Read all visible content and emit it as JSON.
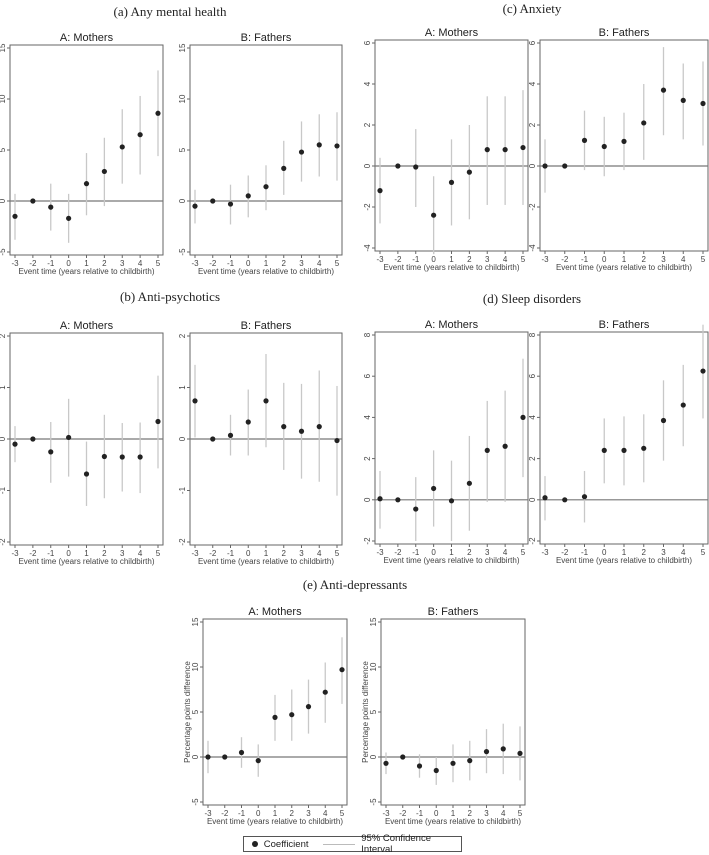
{
  "chart_data": [
    {
      "type": "scatter",
      "title": "(a) Any mental health",
      "panels": [
        {
          "subtitle": "A: Mothers",
          "x": [
            -3,
            -2,
            -1,
            0,
            1,
            2,
            3,
            4,
            5
          ],
          "coef": [
            -1.5,
            0,
            -0.6,
            -1.7,
            1.7,
            2.9,
            5.3,
            6.5,
            8.6
          ],
          "ci_low": [
            -3.8,
            0,
            -2.9,
            -4.1,
            -1.4,
            -0.5,
            1.7,
            2.6,
            4.4
          ],
          "ci_high": [
            0.7,
            0,
            1.7,
            0.7,
            4.7,
            6.2,
            9.0,
            10.3,
            12.8
          ]
        },
        {
          "subtitle": "B: Fathers",
          "x": [
            -3,
            -2,
            -1,
            0,
            1,
            2,
            3,
            4,
            5
          ],
          "coef": [
            -0.5,
            0,
            -0.3,
            0.5,
            1.4,
            3.2,
            4.8,
            5.5,
            5.4
          ],
          "ci_low": [
            -2.2,
            0,
            -2.3,
            -1.6,
            -0.9,
            0.6,
            1.9,
            2.4,
            2.0
          ],
          "ci_high": [
            1.1,
            0,
            1.6,
            2.5,
            3.5,
            5.9,
            7.8,
            8.5,
            8.7
          ]
        }
      ],
      "yticks": [
        "-5",
        "0",
        "5",
        "10",
        "15"
      ],
      "ylim": [
        -5,
        15
      ],
      "xticks": [
        "-3",
        "-2",
        "-1",
        "0",
        "1",
        "2",
        "3",
        "4",
        "5"
      ],
      "xlabel": "Event time (years relative to childbirth)",
      "ylabel": ""
    },
    {
      "type": "scatter",
      "title": "(c) Anxiety",
      "panels": [
        {
          "subtitle": "A: Mothers",
          "x": [
            -3,
            -2,
            -1,
            0,
            1,
            2,
            3,
            4,
            5
          ],
          "coef": [
            -1.2,
            0,
            -0.05,
            -2.4,
            -0.8,
            -0.3,
            0.8,
            0.8,
            0.9
          ],
          "ci_low": [
            -2.8,
            0,
            -2.0,
            -4.3,
            -2.9,
            -2.6,
            -1.9,
            -1.9,
            -1.9
          ],
          "ci_high": [
            0.4,
            0,
            1.8,
            -0.5,
            1.3,
            2.0,
            3.4,
            3.4,
            3.7
          ]
        },
        {
          "subtitle": "B: Fathers",
          "x": [
            -3,
            -2,
            -1,
            0,
            1,
            2,
            3,
            4,
            5
          ],
          "coef": [
            0.0,
            0,
            1.25,
            0.95,
            1.2,
            2.1,
            3.7,
            3.2,
            3.05
          ],
          "ci_low": [
            -1.3,
            0,
            -0.2,
            -0.5,
            -0.2,
            0.3,
            1.5,
            1.3,
            1.0
          ],
          "ci_high": [
            1.3,
            0,
            2.7,
            2.4,
            2.6,
            4.0,
            5.8,
            5.0,
            5.1
          ]
        }
      ],
      "yticks": [
        "-4",
        "-2",
        "0",
        "2",
        "4",
        "6"
      ],
      "ylim": [
        -4,
        6
      ],
      "xticks": [
        "-3",
        "-2",
        "-1",
        "0",
        "1",
        "2",
        "3",
        "4",
        "5"
      ],
      "xlabel": "Event time (years relative to childbirth)",
      "ylabel": ""
    },
    {
      "type": "scatter",
      "title": "(b) Anti-psychotics",
      "panels": [
        {
          "subtitle": "A: Mothers",
          "x": [
            -3,
            -2,
            -1,
            0,
            1,
            2,
            3,
            4,
            5
          ],
          "coef": [
            -0.1,
            0,
            -0.25,
            0.03,
            -0.68,
            -0.34,
            -0.35,
            -0.35,
            0.34
          ],
          "ci_low": [
            -0.45,
            0,
            -0.85,
            -0.73,
            -1.3,
            -1.15,
            -1.02,
            -1.05,
            -0.57
          ],
          "ci_high": [
            0.25,
            0,
            0.33,
            0.78,
            -0.05,
            0.47,
            0.31,
            0.32,
            1.23
          ]
        },
        {
          "subtitle": "B: Fathers",
          "x": [
            -3,
            -2,
            -1,
            0,
            1,
            2,
            3,
            4,
            5
          ],
          "coef": [
            0.74,
            0,
            0.07,
            0.33,
            0.74,
            0.24,
            0.15,
            0.24,
            -0.03
          ],
          "ci_low": [
            0.03,
            0,
            -0.32,
            -0.32,
            -0.16,
            -0.6,
            -0.77,
            -0.83,
            -1.1
          ],
          "ci_high": [
            1.44,
            0,
            0.47,
            0.96,
            1.65,
            1.09,
            1.07,
            1.33,
            1.03
          ]
        }
      ],
      "yticks": [
        "-2",
        "-1",
        "0",
        "1",
        "2"
      ],
      "ylim": [
        -2,
        2
      ],
      "xticks": [
        "-3",
        "-2",
        "-1",
        "0",
        "1",
        "2",
        "3",
        "4",
        "5"
      ],
      "xlabel": "Event time (years relative to childbirth)",
      "ylabel": ""
    },
    {
      "type": "scatter",
      "title": "(d) Sleep disorders",
      "panels": [
        {
          "subtitle": "A: Mothers",
          "x": [
            -3,
            -2,
            -1,
            0,
            1,
            2,
            3,
            4,
            5
          ],
          "coef": [
            0.05,
            0,
            -0.45,
            0.55,
            -0.05,
            0.8,
            2.4,
            2.6,
            4.0
          ],
          "ci_low": [
            -1.4,
            0,
            -2.0,
            -1.3,
            -2.0,
            -1.5,
            -0.1,
            -0.1,
            1.1
          ],
          "ci_high": [
            1.4,
            0,
            1.1,
            2.4,
            1.9,
            3.1,
            4.8,
            5.3,
            6.85
          ]
        },
        {
          "subtitle": "B: Fathers",
          "x": [
            -3,
            -2,
            -1,
            0,
            1,
            2,
            3,
            4,
            5
          ],
          "coef": [
            0.1,
            0,
            0.15,
            2.4,
            2.4,
            2.5,
            3.85,
            4.6,
            6.25
          ],
          "ci_low": [
            -1.0,
            0,
            -1.1,
            0.8,
            0.7,
            0.85,
            1.9,
            2.6,
            3.95
          ],
          "ci_high": [
            1.15,
            0,
            1.4,
            3.95,
            4.05,
            4.15,
            5.8,
            6.55,
            8.5
          ]
        }
      ],
      "yticks": [
        "-2",
        "0",
        "2",
        "4",
        "6",
        "8"
      ],
      "ylim": [
        -2,
        8
      ],
      "xticks": [
        "-3",
        "-2",
        "-1",
        "0",
        "1",
        "2",
        "3",
        "4",
        "5"
      ],
      "xlabel": "Event time (years relative to childbirth)",
      "ylabel": ""
    },
    {
      "type": "scatter",
      "title": "(e) Anti-depressants",
      "panels": [
        {
          "subtitle": "A: Mothers",
          "x": [
            -3,
            -2,
            -1,
            0,
            1,
            2,
            3,
            4,
            5
          ],
          "coef": [
            0,
            0,
            0.5,
            -0.4,
            4.4,
            4.7,
            5.6,
            7.2,
            9.7
          ],
          "ci_low": [
            -1.8,
            0,
            -1.2,
            -2.2,
            1.8,
            1.8,
            2.6,
            3.8,
            5.9
          ],
          "ci_high": [
            1.8,
            0,
            2.2,
            1.4,
            6.9,
            7.5,
            8.6,
            10.5,
            13.3
          ]
        },
        {
          "subtitle": "B: Fathers",
          "x": [
            -3,
            -2,
            -1,
            0,
            1,
            2,
            3,
            4,
            5
          ],
          "coef": [
            -0.7,
            0,
            -1.0,
            -1.5,
            -0.7,
            -0.4,
            0.6,
            0.9,
            0.4
          ],
          "ci_low": [
            -1.9,
            0,
            -2.3,
            -3.1,
            -2.8,
            -2.6,
            -1.8,
            -1.9,
            -2.6
          ],
          "ci_high": [
            0.5,
            0,
            0.3,
            0.0,
            1.4,
            1.8,
            3.1,
            3.7,
            3.4
          ]
        }
      ],
      "yticks": [
        "-5",
        "0",
        "5",
        "10",
        "15"
      ],
      "ylim": [
        -5,
        15
      ],
      "xticks": [
        "-3",
        "-2",
        "-1",
        "0",
        "1",
        "2",
        "3",
        "4",
        "5"
      ],
      "xlabel": "Event time (years relative to childbirth)",
      "ylabel": "Percentage points difference"
    }
  ],
  "legend": {
    "coefficient": "Coefficient",
    "ci": "95% Confidence Interval"
  },
  "colors": {
    "point": "#222222",
    "ci": "#c8c8c8",
    "zero_line": "#777777",
    "frame": "#666666"
  }
}
